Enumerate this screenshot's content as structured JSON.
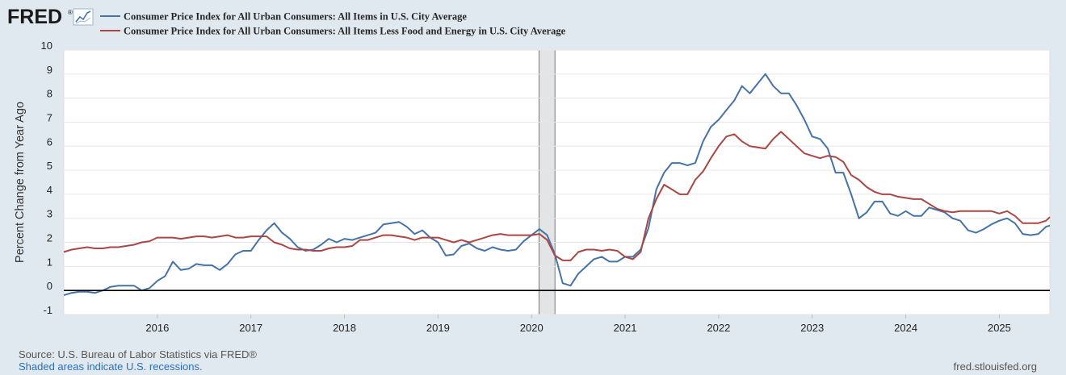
{
  "header": {
    "logo_text": "FRED",
    "logo_mark": "®",
    "logo_icon": "chart-line-icon"
  },
  "chart_data": {
    "type": "line",
    "title": "",
    "xlabel": "",
    "ylabel": "Percent Change from Year Ago",
    "ylim": [
      -1,
      10
    ],
    "yticks": [
      -1,
      0,
      1,
      2,
      3,
      4,
      5,
      6,
      7,
      8,
      9,
      10
    ],
    "xlim": [
      2015.0,
      2025.54
    ],
    "xticks": [
      2016,
      2017,
      2018,
      2019,
      2020,
      2021,
      2022,
      2023,
      2024,
      2025
    ],
    "grid": "horizontal",
    "zero_line": true,
    "recessions": [
      {
        "start": 2020.08,
        "end": 2020.25
      }
    ],
    "series": [
      {
        "name": "Consumer Price Index for All Urban Consumers: All Items in U.S. City Average",
        "color": "#4572a7",
        "start": 2015.0,
        "step": 0.08333,
        "values": [
          -0.2,
          -0.1,
          -0.05,
          -0.05,
          -0.1,
          0.0,
          0.15,
          0.2,
          0.2,
          0.2,
          0.0,
          0.1,
          0.4,
          0.6,
          1.2,
          0.85,
          0.9,
          1.1,
          1.05,
          1.05,
          0.85,
          1.1,
          1.5,
          1.65,
          1.65,
          2.1,
          2.5,
          2.8,
          2.4,
          2.15,
          1.8,
          1.65,
          1.7,
          1.9,
          2.15,
          2.0,
          2.15,
          2.1,
          2.2,
          2.3,
          2.4,
          2.75,
          2.8,
          2.85,
          2.65,
          2.35,
          2.5,
          2.2,
          2.0,
          1.45,
          1.5,
          1.85,
          1.95,
          1.75,
          1.65,
          1.8,
          1.7,
          1.65,
          1.7,
          2.05,
          2.3,
          2.55,
          2.3,
          1.5,
          0.3,
          0.2,
          0.7,
          1.0,
          1.3,
          1.4,
          1.2,
          1.2,
          1.4,
          1.4,
          1.7,
          2.6,
          4.2,
          4.9,
          5.3,
          5.3,
          5.2,
          5.3,
          6.2,
          6.8,
          7.1,
          7.5,
          7.9,
          8.5,
          8.2,
          8.6,
          9.0,
          8.5,
          8.2,
          8.2,
          7.7,
          7.1,
          6.4,
          6.3,
          5.9,
          4.9,
          4.9,
          4.0,
          3.0,
          3.25,
          3.7,
          3.7,
          3.2,
          3.1,
          3.3,
          3.1,
          3.1,
          3.45,
          3.35,
          3.25,
          3.0,
          2.9,
          2.5,
          2.4,
          2.55,
          2.75,
          2.9,
          3.0,
          2.8,
          2.35,
          2.3,
          2.35,
          2.65,
          2.7
        ]
      },
      {
        "name": "Consumer Price Index for All Urban Consumers: All Items Less Food and Energy in U.S. City Average",
        "color": "#aa4643",
        "start": 2015.0,
        "step": 0.08333,
        "values": [
          1.6,
          1.7,
          1.75,
          1.8,
          1.75,
          1.75,
          1.8,
          1.8,
          1.85,
          1.9,
          2.0,
          2.05,
          2.2,
          2.2,
          2.2,
          2.15,
          2.2,
          2.25,
          2.25,
          2.2,
          2.25,
          2.3,
          2.2,
          2.2,
          2.25,
          2.25,
          2.25,
          2.0,
          1.9,
          1.75,
          1.7,
          1.7,
          1.65,
          1.65,
          1.75,
          1.8,
          1.8,
          1.85,
          2.1,
          2.1,
          2.2,
          2.3,
          2.3,
          2.25,
          2.2,
          2.1,
          2.2,
          2.2,
          2.2,
          2.1,
          2.0,
          2.1,
          2.0,
          2.1,
          2.2,
          2.3,
          2.35,
          2.3,
          2.3,
          2.3,
          2.3,
          2.35,
          2.1,
          1.45,
          1.25,
          1.25,
          1.6,
          1.7,
          1.7,
          1.65,
          1.7,
          1.65,
          1.4,
          1.3,
          1.6,
          3.0,
          3.8,
          4.4,
          4.2,
          4.0,
          4.0,
          4.6,
          4.95,
          5.5,
          6.0,
          6.4,
          6.5,
          6.2,
          6.0,
          5.95,
          5.9,
          6.3,
          6.6,
          6.3,
          6.0,
          5.7,
          5.6,
          5.5,
          5.6,
          5.55,
          5.35,
          4.8,
          4.6,
          4.3,
          4.1,
          4.0,
          4.0,
          3.9,
          3.85,
          3.8,
          3.8,
          3.6,
          3.4,
          3.3,
          3.25,
          3.3,
          3.3,
          3.3,
          3.3,
          3.3,
          3.2,
          3.3,
          3.1,
          2.8,
          2.8,
          2.8,
          2.9,
          3.05
        ]
      }
    ]
  },
  "footer": {
    "source": "Source: U.S. Bureau of Labor Statistics via FRED®",
    "recession_note": "Shaded areas indicate U.S. recessions.",
    "site": "fred.stlouisfed.org"
  }
}
